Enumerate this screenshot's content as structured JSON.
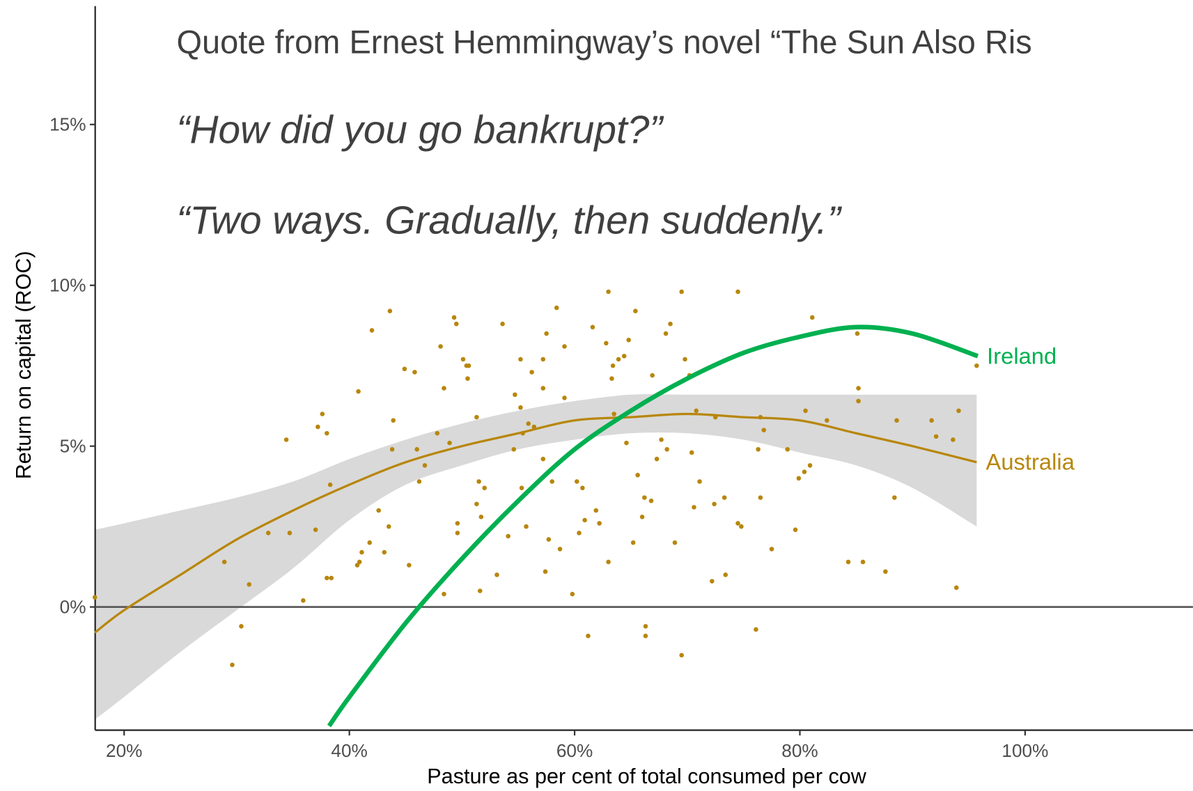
{
  "chart_data": {
    "type": "scatter",
    "annotations": [
      "Quote from Ernest Hemmingway’s novel “The Sun Also Ris",
      "“How did you go bankrupt?”",
      "“Two ways.  Gradually, then suddenly.”"
    ],
    "x_label": "Pasture as per cent of total consumed per cow",
    "y_label": "Return on capital (ROC)",
    "xlim": [
      17.43,
      114.9
    ],
    "ylim": [
      -3.83,
      18.87
    ],
    "xticks": [
      {
        "value": 20,
        "label": "20%"
      },
      {
        "value": 40,
        "label": "40%"
      },
      {
        "value": 60,
        "label": "60%"
      },
      {
        "value": 80,
        "label": "80%"
      },
      {
        "value": 100,
        "label": "100%"
      }
    ],
    "yticks": [
      {
        "value": 0,
        "label": "0%"
      },
      {
        "value": 5,
        "label": "5%"
      },
      {
        "value": 10,
        "label": "10%"
      },
      {
        "value": 15,
        "label": "15%"
      }
    ],
    "hline": 0,
    "points": {
      "color": "#b8860b",
      "x": [
        17.4,
        28.9,
        29.6,
        30.4,
        31.1,
        32.8,
        34.4,
        34.7,
        35.9,
        37.0,
        37.2,
        37.6,
        38.0,
        38.0,
        38.4,
        38.3,
        40.8,
        40.7,
        40.9,
        41.1,
        41.8,
        42.0,
        42.6,
        43.1,
        43.5,
        43.6,
        43.8,
        43.9,
        44.9,
        45.3,
        45.8,
        46.0,
        46.2,
        46.7,
        47.8,
        48.1,
        48.4,
        48.4,
        48.9,
        49.3,
        49.5,
        49.6,
        49.6,
        50.1,
        50.4,
        50.6,
        50.5,
        51.3,
        51.3,
        51.5,
        51.6,
        51.7,
        52.0,
        53.1,
        53.6,
        54.1,
        54.6,
        54.7,
        55.2,
        55.2,
        55.3,
        55.4,
        55.7,
        55.9,
        56.2,
        56.4,
        57.2,
        57.2,
        57.2,
        57.4,
        57.5,
        57.7,
        58.0,
        58.4,
        58.7,
        59.1,
        59.1,
        59.8,
        60.2,
        60.4,
        60.7,
        60.9,
        61.2,
        61.6,
        61.9,
        62.2,
        62.8,
        63.0,
        63.0,
        63.3,
        63.4,
        63.5,
        63.9,
        64.4,
        64.6,
        64.8,
        65.2,
        65.4,
        65.6,
        66.0,
        66.2,
        66.3,
        66.3,
        66.8,
        66.9,
        67.3,
        67.7,
        68.1,
        68.2,
        68.5,
        68.9,
        69.5,
        69.5,
        69.8,
        70.2,
        70.4,
        70.6,
        70.8,
        71.1,
        72.2,
        72.4,
        72.5,
        73.3,
        73.4,
        74.5,
        74.5,
        74.8,
        76.1,
        76.3,
        76.5,
        76.5,
        76.8,
        77.5,
        78.9,
        79.6,
        79.9,
        80.4,
        80.5,
        80.9,
        81.1,
        82.4,
        84.3,
        85.1,
        85.2,
        85.2,
        85.6,
        87.6,
        88.4,
        88.6,
        91.7,
        92.1,
        93.6,
        93.9,
        94.1,
        95.7
      ],
      "values": [
        0.3,
        1.4,
        -1.8,
        -0.6,
        0.7,
        2.3,
        5.2,
        2.3,
        0.2,
        2.4,
        5.6,
        6.0,
        5.4,
        0.9,
        0.9,
        3.8,
        6.7,
        1.3,
        1.4,
        1.7,
        2.0,
        8.6,
        3.0,
        1.7,
        2.5,
        9.2,
        4.9,
        5.8,
        7.4,
        1.3,
        7.3,
        4.9,
        3.9,
        4.4,
        5.4,
        8.1,
        0.4,
        6.8,
        5.1,
        9.0,
        8.8,
        2.6,
        2.3,
        7.7,
        7.5,
        7.5,
        7.1,
        5.9,
        3.2,
        3.9,
        0.5,
        2.8,
        3.7,
        1.0,
        8.8,
        2.2,
        4.9,
        6.6,
        6.2,
        7.7,
        3.7,
        5.4,
        2.5,
        5.7,
        7.3,
        5.6,
        4.6,
        6.8,
        7.7,
        1.1,
        8.5,
        2.1,
        3.9,
        9.3,
        1.8,
        6.5,
        8.1,
        0.4,
        3.9,
        2.3,
        3.7,
        2.7,
        -0.9,
        8.7,
        3.0,
        2.6,
        8.2,
        9.8,
        1.4,
        7.1,
        7.5,
        6.0,
        7.7,
        7.8,
        5.1,
        8.3,
        2.0,
        9.2,
        4.1,
        2.8,
        3.4,
        -0.6,
        -0.9,
        3.3,
        7.2,
        4.6,
        5.2,
        8.5,
        4.9,
        8.8,
        2.0,
        -1.5,
        9.8,
        7.7,
        7.2,
        4.8,
        3.1,
        6.1,
        3.9,
        0.8,
        3.2,
        5.9,
        3.4,
        1.0,
        9.8,
        2.6,
        2.5,
        -0.7,
        4.9,
        5.9,
        3.4,
        5.5,
        1.8,
        4.9,
        2.4,
        4.0,
        4.2,
        6.1,
        4.4,
        9.0,
        5.8,
        1.4,
        8.5,
        6.8,
        6.4,
        1.4,
        1.1,
        3.4,
        5.8,
        5.8,
        5.3,
        5.2,
        0.6,
        6.1,
        7.5
      ]
    },
    "series": [
      {
        "name": "Australia",
        "color": "#b8860b",
        "band_color": "#d9d9d9",
        "x": [
          17.4,
          20,
          25,
          30,
          35,
          40,
          45,
          50,
          55,
          60,
          65,
          70,
          75,
          80,
          85,
          90,
          95.7
        ],
        "values": [
          -0.8,
          -0.1,
          1.0,
          2.1,
          3.0,
          3.8,
          4.5,
          5.0,
          5.4,
          5.8,
          5.9,
          6.0,
          5.9,
          5.8,
          5.4,
          5.0,
          4.5
        ],
        "band_upper": [
          2.4,
          2.6,
          3.0,
          3.4,
          3.9,
          4.6,
          5.2,
          5.7,
          6.1,
          6.4,
          6.6,
          6.6,
          6.6,
          6.6,
          6.6,
          6.6,
          6.6
        ],
        "band_lower": [
          -3.5,
          -2.8,
          -1.4,
          -0.1,
          1.2,
          2.7,
          3.8,
          4.4,
          4.9,
          5.2,
          5.4,
          5.4,
          5.2,
          4.8,
          4.4,
          3.7,
          2.5
        ]
      },
      {
        "name": "Ireland",
        "color": "#00b050",
        "x": [
          38.2,
          40,
          45,
          50,
          55,
          60,
          65,
          70,
          75,
          80,
          85,
          90,
          95.8
        ],
        "values": [
          -3.7,
          -2.8,
          -0.5,
          1.5,
          3.3,
          4.9,
          6.1,
          7.1,
          7.9,
          8.4,
          8.7,
          8.5,
          7.8
        ]
      }
    ]
  }
}
